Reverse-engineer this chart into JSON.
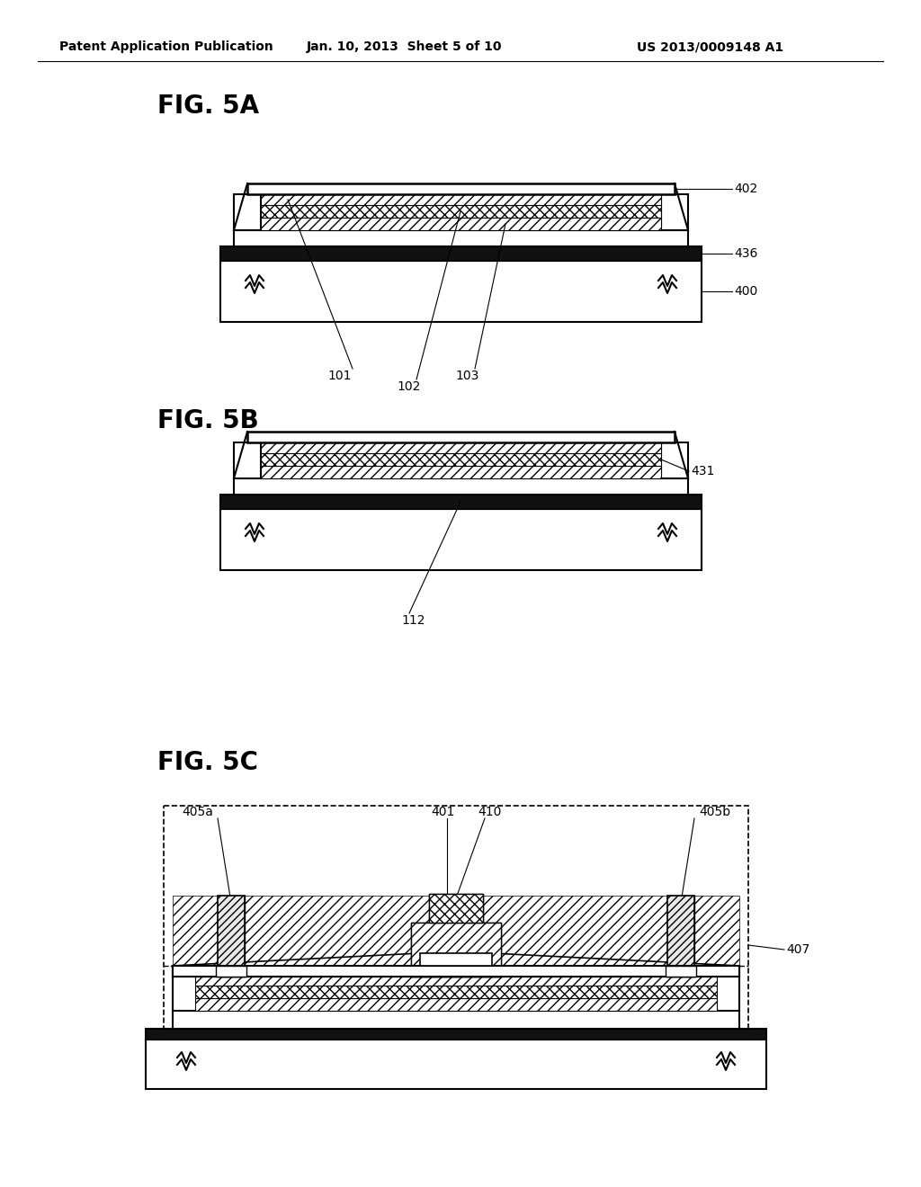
{
  "bg_color": "#ffffff",
  "header_left": "Patent Application Publication",
  "header_mid": "Jan. 10, 2013  Sheet 5 of 10",
  "header_right": "US 2013/0009148 A1",
  "fig5a_label": "FIG. 5A",
  "fig5b_label": "FIG. 5B",
  "fig5c_label": "FIG. 5C"
}
